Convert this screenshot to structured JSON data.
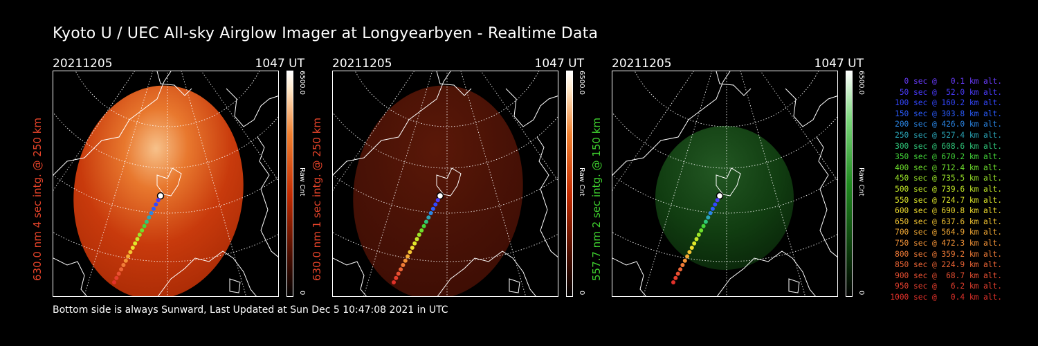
{
  "title": "Kyoto U / UEC All-sky Airglow Imager at Longyearbyen - Realtime Data",
  "footer": "Bottom side is always Sunward, Last Updated at Sun Dec  5 10:47:08 2021 in UTC",
  "panels": [
    {
      "date": "20211205",
      "time": "1047 UT",
      "ylabel": "630.0 nm 4 sec intg. @ 250 km",
      "label_color": "#e8442a",
      "colorbar_max": "6500.0",
      "colorbar_min": "0",
      "colorbar_unit": "Raw Cnt",
      "colormap": "red",
      "brightness": 0.9
    },
    {
      "date": "20211205",
      "time": "1047 UT",
      "ylabel": "630.0 nm 1 sec intg. @ 250 km",
      "label_color": "#e8442a",
      "colorbar_max": "6500.0",
      "colorbar_min": "0",
      "colorbar_unit": "Raw Cnt",
      "colormap": "red",
      "brightness": 0.3
    },
    {
      "date": "20211205",
      "time": "1047 UT",
      "ylabel": "557.7 nm 2 sec intg. @ 150 km",
      "label_color": "#3fd12f",
      "colorbar_max": "6500.0",
      "colorbar_min": "0",
      "colorbar_unit": "Raw Cnt",
      "colormap": "green",
      "brightness": 0.35
    }
  ],
  "legend": [
    {
      "text": "0 sec @   0.1 km alt.",
      "color": "#6a3cff"
    },
    {
      "text": "50 sec @  52.0 km alt.",
      "color": "#4a3cff"
    },
    {
      "text": "100 sec @ 160.2 km alt.",
      "color": "#3347ff"
    },
    {
      "text": "150 sec @ 303.8 km alt.",
      "color": "#2a5cff"
    },
    {
      "text": "200 sec @ 426.0 km alt.",
      "color": "#2a86e6"
    },
    {
      "text": "250 sec @ 527.4 km alt.",
      "color": "#2aa6b8"
    },
    {
      "text": "300 sec @ 608.6 km alt.",
      "color": "#2fc77a"
    },
    {
      "text": "350 sec @ 670.2 km alt.",
      "color": "#43d83a"
    },
    {
      "text": "400 sec @ 712.4 km alt.",
      "color": "#6ee02c"
    },
    {
      "text": "450 sec @ 735.5 km alt.",
      "color": "#9ae629"
    },
    {
      "text": "500 sec @ 739.6 km alt.",
      "color": "#c4ea28"
    },
    {
      "text": "550 sec @ 724.7 km alt.",
      "color": "#e0e82a"
    },
    {
      "text": "600 sec @ 690.8 km alt.",
      "color": "#f0dc2e"
    },
    {
      "text": "650 sec @ 637.6 km alt.",
      "color": "#f3c432"
    },
    {
      "text": "700 sec @ 564.9 km alt.",
      "color": "#f4aa35"
    },
    {
      "text": "750 sec @ 472.3 km alt.",
      "color": "#f49337"
    },
    {
      "text": "800 sec @ 359.2 km alt.",
      "color": "#f27c37"
    },
    {
      "text": "850 sec @ 224.9 km alt.",
      "color": "#ee6535"
    },
    {
      "text": "900 sec @  68.7 km alt.",
      "color": "#ea5032"
    },
    {
      "text": "950 sec @   6.2 km alt.",
      "color": "#e63f2e"
    },
    {
      "text": "1000 sec @   0.4 km alt.",
      "color": "#e2312a"
    }
  ]
}
